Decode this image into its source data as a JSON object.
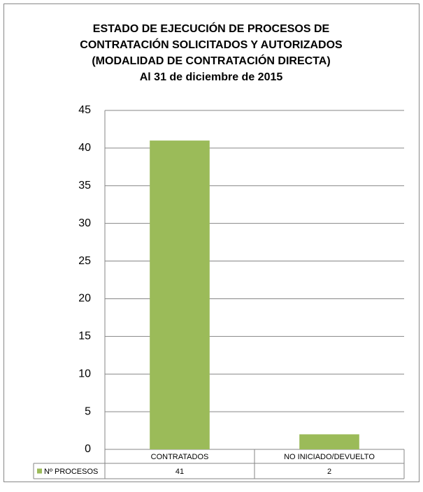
{
  "chart_data": {
    "type": "bar",
    "title_lines": [
      "ESTADO DE EJECUCIÓN DE PROCESOS DE",
      "CONTRATACIÓN SOLICITADOS Y AUTORIZADOS",
      "(MODALIDAD DE CONTRATACIÓN DIRECTA)",
      "Al 31 de diciembre de 2015"
    ],
    "categories": [
      "CONTRATADOS",
      "NO INICIADO/DEVUELTO"
    ],
    "series": [
      {
        "name": "Nº PROCESOS",
        "color": "#9bbb59",
        "values": [
          41,
          2
        ]
      }
    ],
    "ylim": [
      0,
      45
    ],
    "yticks": [
      0,
      5,
      10,
      15,
      20,
      25,
      30,
      35,
      40,
      45
    ],
    "grid": true,
    "data_table": true
  }
}
